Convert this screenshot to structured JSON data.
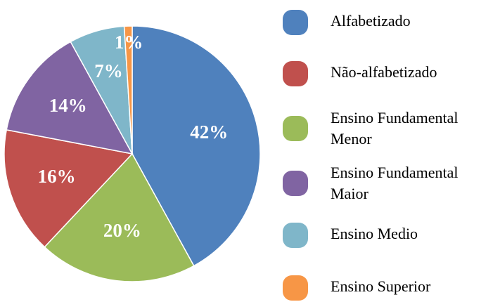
{
  "chart_data": {
    "type": "pie",
    "categories": [
      "Alfabetizado",
      "Não-alfabetizado",
      "Ensino Fundamental Menor",
      "Ensino Fundamental Maior",
      "Ensino Medio",
      "Ensino Superior"
    ],
    "values": [
      42,
      16,
      20,
      14,
      7,
      1
    ],
    "value_labels": [
      "42%",
      "16%",
      "20%",
      "14%",
      "7%",
      "1%"
    ],
    "colors": [
      "#4f81bd",
      "#c0504d",
      "#9bbb59",
      "#8064a2",
      "#7fb6c9",
      "#f79646"
    ],
    "legend": "right"
  }
}
